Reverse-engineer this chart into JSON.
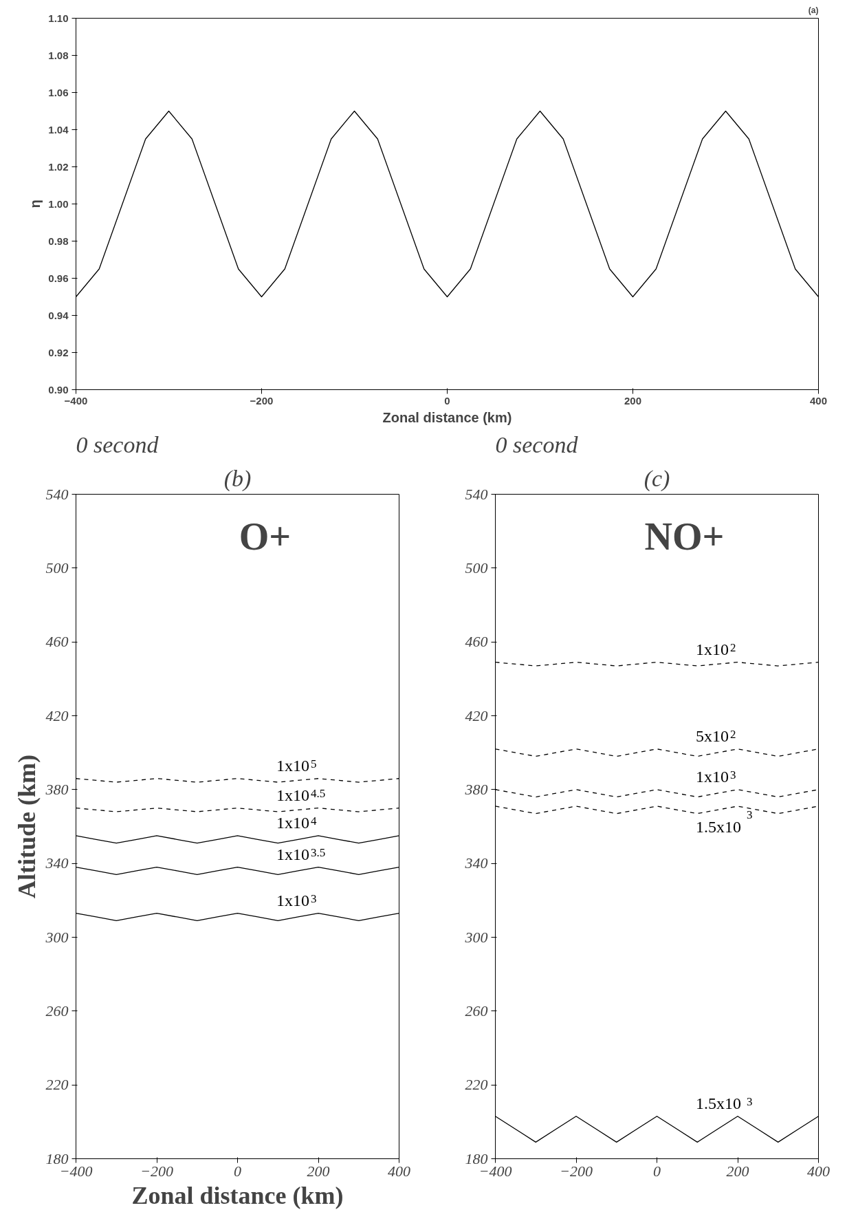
{
  "chart_data": [
    {
      "type": "line",
      "title": "(a)",
      "xlabel": "Zonal distance (km)",
      "ylabel": "η",
      "xlim": [
        -400,
        400
      ],
      "xticks": [
        -400,
        -200,
        0,
        200,
        400
      ],
      "ylim": [
        0.9,
        1.1
      ],
      "yticks": [
        {
          "value": 0.9,
          "label": "0.90"
        },
        {
          "value": 0.92,
          "label": "0.92"
        },
        {
          "value": 0.94,
          "label": "0.94"
        },
        {
          "value": 0.96,
          "label": "0.96"
        },
        {
          "value": 0.98,
          "label": "0.98"
        },
        {
          "value": 1.0,
          "label": "1.00"
        },
        {
          "value": 1.02,
          "label": "1.02"
        },
        {
          "value": 1.04,
          "label": "1.04"
        },
        {
          "value": 1.06,
          "label": "1.06"
        },
        {
          "value": 1.08,
          "label": "1.08"
        },
        {
          "value": 1.1,
          "label": "1.10"
        }
      ],
      "grid": false,
      "line_style": "solid",
      "x": [
        -400,
        -375,
        -350,
        -325,
        -300,
        -275,
        -250,
        -225,
        -200,
        -175,
        -150,
        -125,
        -100,
        -75,
        -50,
        -25,
        0,
        25,
        50,
        75,
        100,
        125,
        150,
        175,
        200,
        225,
        250,
        275,
        300,
        325,
        350,
        375,
        400
      ],
      "series": [
        {
          "color": "#000000",
          "values": [
            0.95,
            0.965,
            1.0,
            1.035,
            1.05,
            1.035,
            1.0,
            0.965,
            0.95,
            0.965,
            1.0,
            1.035,
            1.05,
            1.035,
            1.0,
            0.965,
            0.95,
            0.965,
            1.0,
            1.035,
            1.05,
            1.035,
            1.0,
            0.965,
            0.95,
            0.965,
            1.0,
            1.035,
            1.05,
            1.035,
            1.0,
            0.965,
            0.95
          ]
        }
      ]
    },
    {
      "type": "line",
      "title": "0 second",
      "subtitle": "(b)",
      "xlabel": "Zonal distance (km)",
      "ylabel": "Altitude (km)",
      "annotations": [
        "O+"
      ],
      "xlim": [
        -400,
        400
      ],
      "xticks": [
        -400,
        -200,
        0,
        200,
        400
      ],
      "ylim": [
        180,
        540
      ],
      "yticks": [
        180,
        220,
        260,
        300,
        340,
        380,
        420,
        460,
        500,
        540
      ],
      "grid": false,
      "x": [
        -400,
        -350,
        -300,
        -250,
        -200,
        -150,
        -100,
        -50,
        0,
        50,
        100,
        150,
        200,
        250,
        300,
        350,
        400
      ],
      "series": [
        {
          "name": "1x10$^{5}$",
          "color": "#000000",
          "line_style": "dashed",
          "values": [
            386,
            385,
            384,
            385,
            386,
            385,
            384,
            385,
            386,
            385,
            384,
            385,
            386,
            385,
            384,
            385,
            386
          ]
        },
        {
          "name": "1x10$^{4.5}$",
          "color": "#000000",
          "line_style": "dashed",
          "values": [
            370,
            369,
            368,
            369,
            370,
            369,
            368,
            369,
            370,
            369,
            368,
            369,
            370,
            369,
            368,
            369,
            370
          ]
        },
        {
          "name": "1x10$^{4}$",
          "color": "#000000",
          "line_style": "solid",
          "values": [
            355,
            353,
            351,
            353,
            355,
            353,
            351,
            353,
            355,
            353,
            351,
            353,
            355,
            353,
            351,
            353,
            355
          ]
        },
        {
          "name": "1x10$^{3.5}$",
          "color": "#000000",
          "line_style": "solid",
          "values": [
            338,
            336,
            334,
            336,
            338,
            336,
            334,
            336,
            338,
            336,
            334,
            336,
            338,
            336,
            334,
            336,
            338
          ]
        },
        {
          "name": "1x10$^{3}$",
          "color": "#000000",
          "line_style": "solid",
          "values": [
            313,
            311,
            309,
            311,
            313,
            311,
            309,
            311,
            313,
            311,
            309,
            311,
            313,
            311,
            309,
            311,
            313
          ]
        }
      ]
    },
    {
      "type": "line",
      "title": "0 second",
      "subtitle": "(c)",
      "annotations": [
        "NO+"
      ],
      "xlim": [
        -400,
        400
      ],
      "xticks": [
        -400,
        -200,
        0,
        200,
        400
      ],
      "ylim": [
        180,
        540
      ],
      "yticks": [
        180,
        220,
        260,
        300,
        340,
        380,
        420,
        460,
        500,
        540
      ],
      "grid": false,
      "x": [
        -400,
        -350,
        -300,
        -250,
        -200,
        -150,
        -100,
        -50,
        0,
        50,
        100,
        150,
        200,
        250,
        300,
        350,
        400
      ],
      "series": [
        {
          "name": "1x10$^{2}$",
          "color": "#000000",
          "line_style": "dashed",
          "values": [
            449,
            448,
            447,
            448,
            449,
            448,
            447,
            448,
            449,
            448,
            447,
            448,
            449,
            448,
            447,
            448,
            449
          ]
        },
        {
          "name": "5x10$^{2}$",
          "color": "#000000",
          "line_style": "dashed",
          "values": [
            402,
            400,
            398,
            400,
            402,
            400,
            398,
            400,
            402,
            400,
            398,
            400,
            402,
            400,
            398,
            400,
            402
          ]
        },
        {
          "name": "1x10$^{3}$",
          "color": "#000000",
          "line_style": "dashed",
          "values": [
            380,
            378,
            376,
            378,
            380,
            378,
            376,
            378,
            380,
            378,
            376,
            378,
            380,
            378,
            376,
            378,
            380
          ]
        },
        {
          "name": "1.5x10$^{3}$",
          "color": "#000000",
          "line_style": "dashed",
          "values": [
            371,
            369,
            367,
            369,
            371,
            369,
            367,
            369,
            371,
            369,
            367,
            369,
            371,
            369,
            367,
            369,
            371
          ]
        },
        {
          "name": "1.5x10$^{3}$",
          "color": "#000000",
          "line_style": "solid",
          "values": [
            203,
            196,
            189,
            196,
            203,
            196,
            189,
            196,
            203,
            196,
            189,
            196,
            203,
            196,
            189,
            196,
            203
          ]
        }
      ]
    }
  ]
}
